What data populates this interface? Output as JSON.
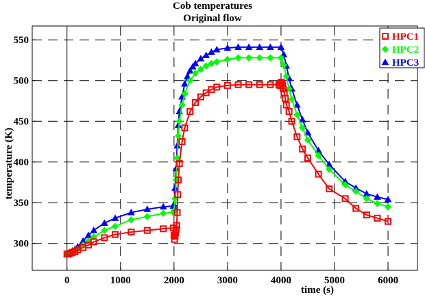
{
  "chart_data": {
    "type": "line",
    "title": "Cob temperatures",
    "subtitle": "Original flow",
    "xlabel": "time (s)",
    "ylabel": "temperature (K)",
    "xlim": [
      -650,
      6550
    ],
    "ylim": [
      267,
      567
    ],
    "xticks": [
      0,
      1000,
      2000,
      3000,
      4000,
      5000,
      6000
    ],
    "yticks": [
      300,
      350,
      400,
      450,
      500,
      550
    ],
    "grid": true,
    "legend_position": "top-right",
    "series": [
      {
        "name": "HPC1",
        "color": "#ff0000",
        "marker": "square",
        "x": [
          0,
          30,
          60,
          100,
          150,
          200,
          300,
          400,
          500,
          700,
          900,
          1200,
          1500,
          1800,
          1990,
          2000,
          2010,
          2020,
          2030,
          2040,
          2050,
          2060,
          2070,
          2080,
          2100,
          2150,
          2200,
          2300,
          2400,
          2500,
          2600,
          2700,
          2800,
          3000,
          3200,
          3400,
          3600,
          3800,
          3960,
          3980,
          4000,
          4010,
          4020,
          4030,
          4040,
          4060,
          4080,
          4100,
          4150,
          4200,
          4300,
          4400,
          4500,
          4700,
          4900,
          5200,
          5400,
          5600,
          5800,
          6000
        ],
        "y": [
          287,
          287,
          288,
          289,
          290,
          292,
          295,
          298,
          302,
          307,
          311,
          314,
          316,
          318,
          319,
          310,
          305,
          309,
          313,
          317,
          322,
          338,
          360,
          378,
          398,
          425,
          442,
          462,
          473,
          480,
          485,
          489,
          492,
          494,
          495,
          495,
          495,
          495,
          495,
          494,
          498,
          497,
          496,
          494,
          490,
          485,
          478,
          470,
          462,
          450,
          431,
          416,
          405,
          385,
          367,
          355,
          343,
          335,
          331,
          327
        ]
      },
      {
        "name": "HPC2",
        "color": "#00ff00",
        "marker": "diamond",
        "x": [
          0,
          50,
          100,
          150,
          200,
          300,
          400,
          500,
          700,
          900,
          1200,
          1500,
          1800,
          1990,
          2000,
          2020,
          2040,
          2060,
          2080,
          2100,
          2150,
          2200,
          2300,
          2400,
          2500,
          2600,
          2700,
          2800,
          3000,
          3200,
          3400,
          3600,
          3800,
          4000,
          4050,
          4100,
          4150,
          4200,
          4300,
          4400,
          4500,
          4700,
          4900,
          5200,
          5400,
          5600,
          5800,
          6000
        ],
        "y": [
          287,
          288,
          289,
          291,
          293,
          298,
          303,
          308,
          316,
          321,
          329,
          333,
          337,
          338,
          340,
          355,
          378,
          405,
          432,
          450,
          470,
          484,
          500,
          509,
          514,
          518,
          521,
          523,
          526,
          528,
          528,
          528,
          528,
          528,
          519,
          505,
          490,
          477,
          458,
          442,
          427,
          408,
          391,
          372,
          364,
          355,
          349,
          345
        ]
      },
      {
        "name": "HPC3",
        "color": "#0000ff",
        "marker": "triangle",
        "x": [
          0,
          50,
          100,
          150,
          200,
          300,
          400,
          500,
          700,
          900,
          1200,
          1500,
          1800,
          1990,
          2000,
          2020,
          2040,
          2060,
          2080,
          2100,
          2150,
          2200,
          2250,
          2300,
          2350,
          2400,
          2500,
          2600,
          2700,
          2800,
          3000,
          3200,
          3400,
          3600,
          3800,
          4000,
          4050,
          4100,
          4150,
          4200,
          4300,
          4400,
          4500,
          4700,
          4900,
          5200,
          5400,
          5600,
          5800,
          6000
        ],
        "y": [
          287,
          289,
          291,
          293,
          296,
          303,
          310,
          316,
          325,
          331,
          338,
          342,
          345,
          346,
          348,
          368,
          392,
          420,
          445,
          462,
          480,
          496,
          505,
          512,
          517,
          521,
          527,
          531,
          535,
          538,
          540,
          541,
          541,
          541,
          541,
          541,
          532,
          518,
          503,
          490,
          470,
          452,
          436,
          414,
          397,
          376,
          368,
          361,
          357,
          354
        ]
      }
    ]
  }
}
